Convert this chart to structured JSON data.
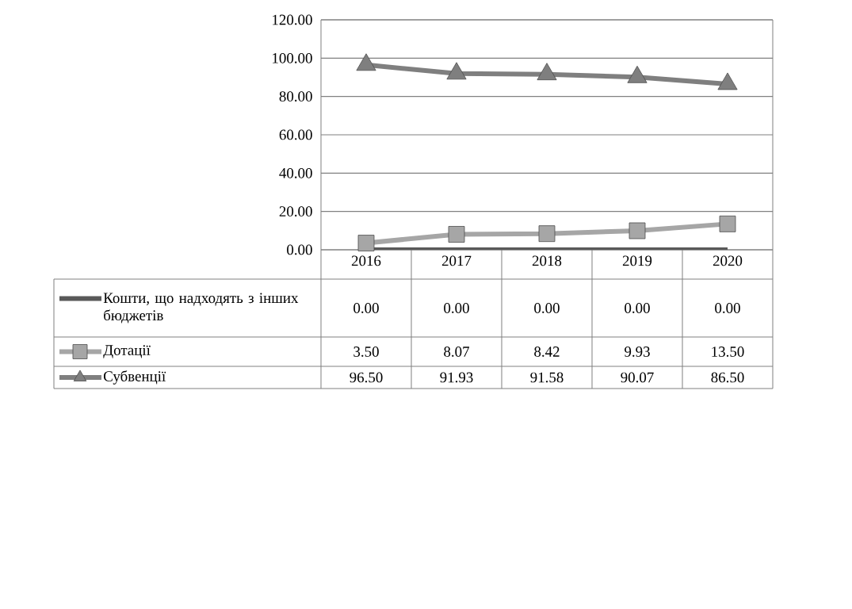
{
  "chart_data": {
    "type": "line",
    "categories": [
      "2016",
      "2017",
      "2018",
      "2019",
      "2020"
    ],
    "series": [
      {
        "name": "Кошти, що надходять з інших бюджетів",
        "color": "#595959",
        "marker": "none",
        "values": [
          0,
          0,
          0,
          0,
          0
        ],
        "value_labels": [
          "0.00",
          "0.00",
          "0.00",
          "0.00",
          "0.00"
        ]
      },
      {
        "name": "Дотації",
        "color": "#a6a6a6",
        "marker": "square",
        "values": [
          3.5,
          8.07,
          8.42,
          9.93,
          13.5
        ],
        "value_labels": [
          "3.50",
          "8.07",
          "8.42",
          "9.93",
          "13.50"
        ]
      },
      {
        "name": "Субвенції",
        "color": "#7f7f7f",
        "marker": "triangle",
        "values": [
          96.5,
          91.93,
          91.58,
          90.07,
          86.5
        ],
        "value_labels": [
          "96.50",
          "91.93",
          "91.58",
          "90.07",
          "86.50"
        ]
      }
    ],
    "ylim": [
      0,
      120
    ],
    "yticks": [
      {
        "value": 0,
        "label": "0.00"
      },
      {
        "value": 20,
        "label": "20.00"
      },
      {
        "value": 40,
        "label": "40.00"
      },
      {
        "value": 60,
        "label": "60.00"
      },
      {
        "value": 80,
        "label": "80.00"
      },
      {
        "value": 100,
        "label": "100.00"
      },
      {
        "value": 120,
        "label": "120.00"
      }
    ],
    "grid": "y",
    "legend": "bottom"
  }
}
